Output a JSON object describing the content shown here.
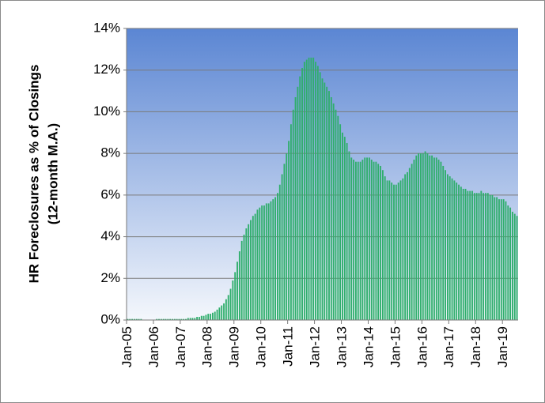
{
  "chart_data": {
    "type": "bar",
    "ylabel": [
      "HR Foreclosures as % of Closings",
      "(12-month M.A.)"
    ],
    "color": "#2fae6c",
    "ylim": [
      0,
      14
    ],
    "yticks": [
      {
        "value": 0,
        "label": "0%"
      },
      {
        "value": 2,
        "label": "2%"
      },
      {
        "value": 4,
        "label": "4%"
      },
      {
        "value": 6,
        "label": "6%"
      },
      {
        "value": 8,
        "label": "8%"
      },
      {
        "value": 10,
        "label": "10%"
      },
      {
        "value": 12,
        "label": "12%"
      },
      {
        "value": 14,
        "label": "14%"
      }
    ],
    "grid": true,
    "categories": [
      "Jan-05",
      null,
      null,
      null,
      null,
      null,
      null,
      null,
      null,
      null,
      null,
      null,
      "Jan-06",
      null,
      null,
      null,
      null,
      null,
      null,
      null,
      null,
      null,
      null,
      null,
      "Jan-07",
      null,
      null,
      null,
      null,
      null,
      null,
      null,
      null,
      null,
      null,
      null,
      "Jan-08",
      null,
      null,
      null,
      null,
      null,
      null,
      null,
      null,
      null,
      null,
      null,
      "Jan-09",
      null,
      null,
      null,
      null,
      null,
      null,
      null,
      null,
      null,
      null,
      null,
      "Jan-10",
      null,
      null,
      null,
      null,
      null,
      null,
      null,
      null,
      null,
      null,
      null,
      "Jan-11",
      null,
      null,
      null,
      null,
      null,
      null,
      null,
      null,
      null,
      null,
      null,
      "Jan-12",
      null,
      null,
      null,
      null,
      null,
      null,
      null,
      null,
      null,
      null,
      null,
      "Jan-13",
      null,
      null,
      null,
      null,
      null,
      null,
      null,
      null,
      null,
      null,
      null,
      "Jan-14",
      null,
      null,
      null,
      null,
      null,
      null,
      null,
      null,
      null,
      null,
      null,
      "Jan-15",
      null,
      null,
      null,
      null,
      null,
      null,
      null,
      null,
      null,
      null,
      null,
      "Jan-16",
      null,
      null,
      null,
      null,
      null,
      null,
      null,
      null,
      null,
      null,
      null,
      "Jan-17",
      null,
      null,
      null,
      null,
      null,
      null,
      null,
      null,
      null,
      null,
      null,
      "Jan-18",
      null,
      null,
      null,
      null,
      null,
      null,
      null,
      null,
      null,
      null,
      null,
      "Jan-19",
      null,
      null,
      null,
      null,
      null,
      null
    ],
    "values": [
      0.05,
      0.05,
      0.05,
      0.05,
      0.05,
      0.05,
      0.05,
      0,
      0,
      0,
      0,
      0,
      0,
      0.05,
      0.05,
      0.05,
      0.05,
      0.05,
      0.05,
      0.05,
      0.05,
      0.05,
      0.05,
      0.05,
      0.05,
      0.05,
      0.05,
      0.1,
      0.1,
      0.1,
      0.1,
      0.15,
      0.15,
      0.2,
      0.2,
      0.25,
      0.3,
      0.3,
      0.35,
      0.4,
      0.5,
      0.6,
      0.7,
      0.8,
      1.0,
      1.2,
      1.5,
      1.9,
      2.3,
      2.8,
      3.3,
      3.8,
      4.1,
      4.4,
      4.6,
      4.8,
      5.0,
      5.1,
      5.3,
      5.4,
      5.5,
      5.5,
      5.6,
      5.6,
      5.7,
      5.8,
      5.9,
      6.1,
      6.5,
      7.0,
      7.5,
      8.0,
      8.6,
      9.4,
      10.1,
      10.7,
      11.2,
      11.7,
      12.1,
      12.4,
      12.5,
      12.6,
      12.6,
      12.6,
      12.4,
      12.2,
      11.9,
      11.6,
      11.4,
      11.2,
      11.0,
      10.7,
      10.4,
      10.1,
      9.8,
      9.4,
      9.0,
      8.8,
      8.5,
      8.1,
      7.8,
      7.7,
      7.6,
      7.6,
      7.6,
      7.7,
      7.8,
      7.8,
      7.8,
      7.7,
      7.6,
      7.6,
      7.5,
      7.4,
      7.2,
      6.9,
      6.7,
      6.7,
      6.6,
      6.5,
      6.5,
      6.6,
      6.7,
      6.8,
      7.0,
      7.1,
      7.3,
      7.5,
      7.7,
      7.9,
      8.0,
      8.0,
      8.0,
      8.1,
      8.0,
      7.9,
      7.9,
      7.8,
      7.8,
      7.7,
      7.6,
      7.4,
      7.2,
      7.0,
      6.9,
      6.8,
      6.7,
      6.6,
      6.5,
      6.4,
      6.3,
      6.3,
      6.2,
      6.2,
      6.2,
      6.1,
      6.1,
      6.1,
      6.2,
      6.1,
      6.1,
      6.1,
      6.0,
      6.0,
      5.9,
      5.9,
      5.8,
      5.8,
      5.8,
      5.7,
      5.5,
      5.4,
      5.2,
      5.1,
      5.0
    ]
  }
}
